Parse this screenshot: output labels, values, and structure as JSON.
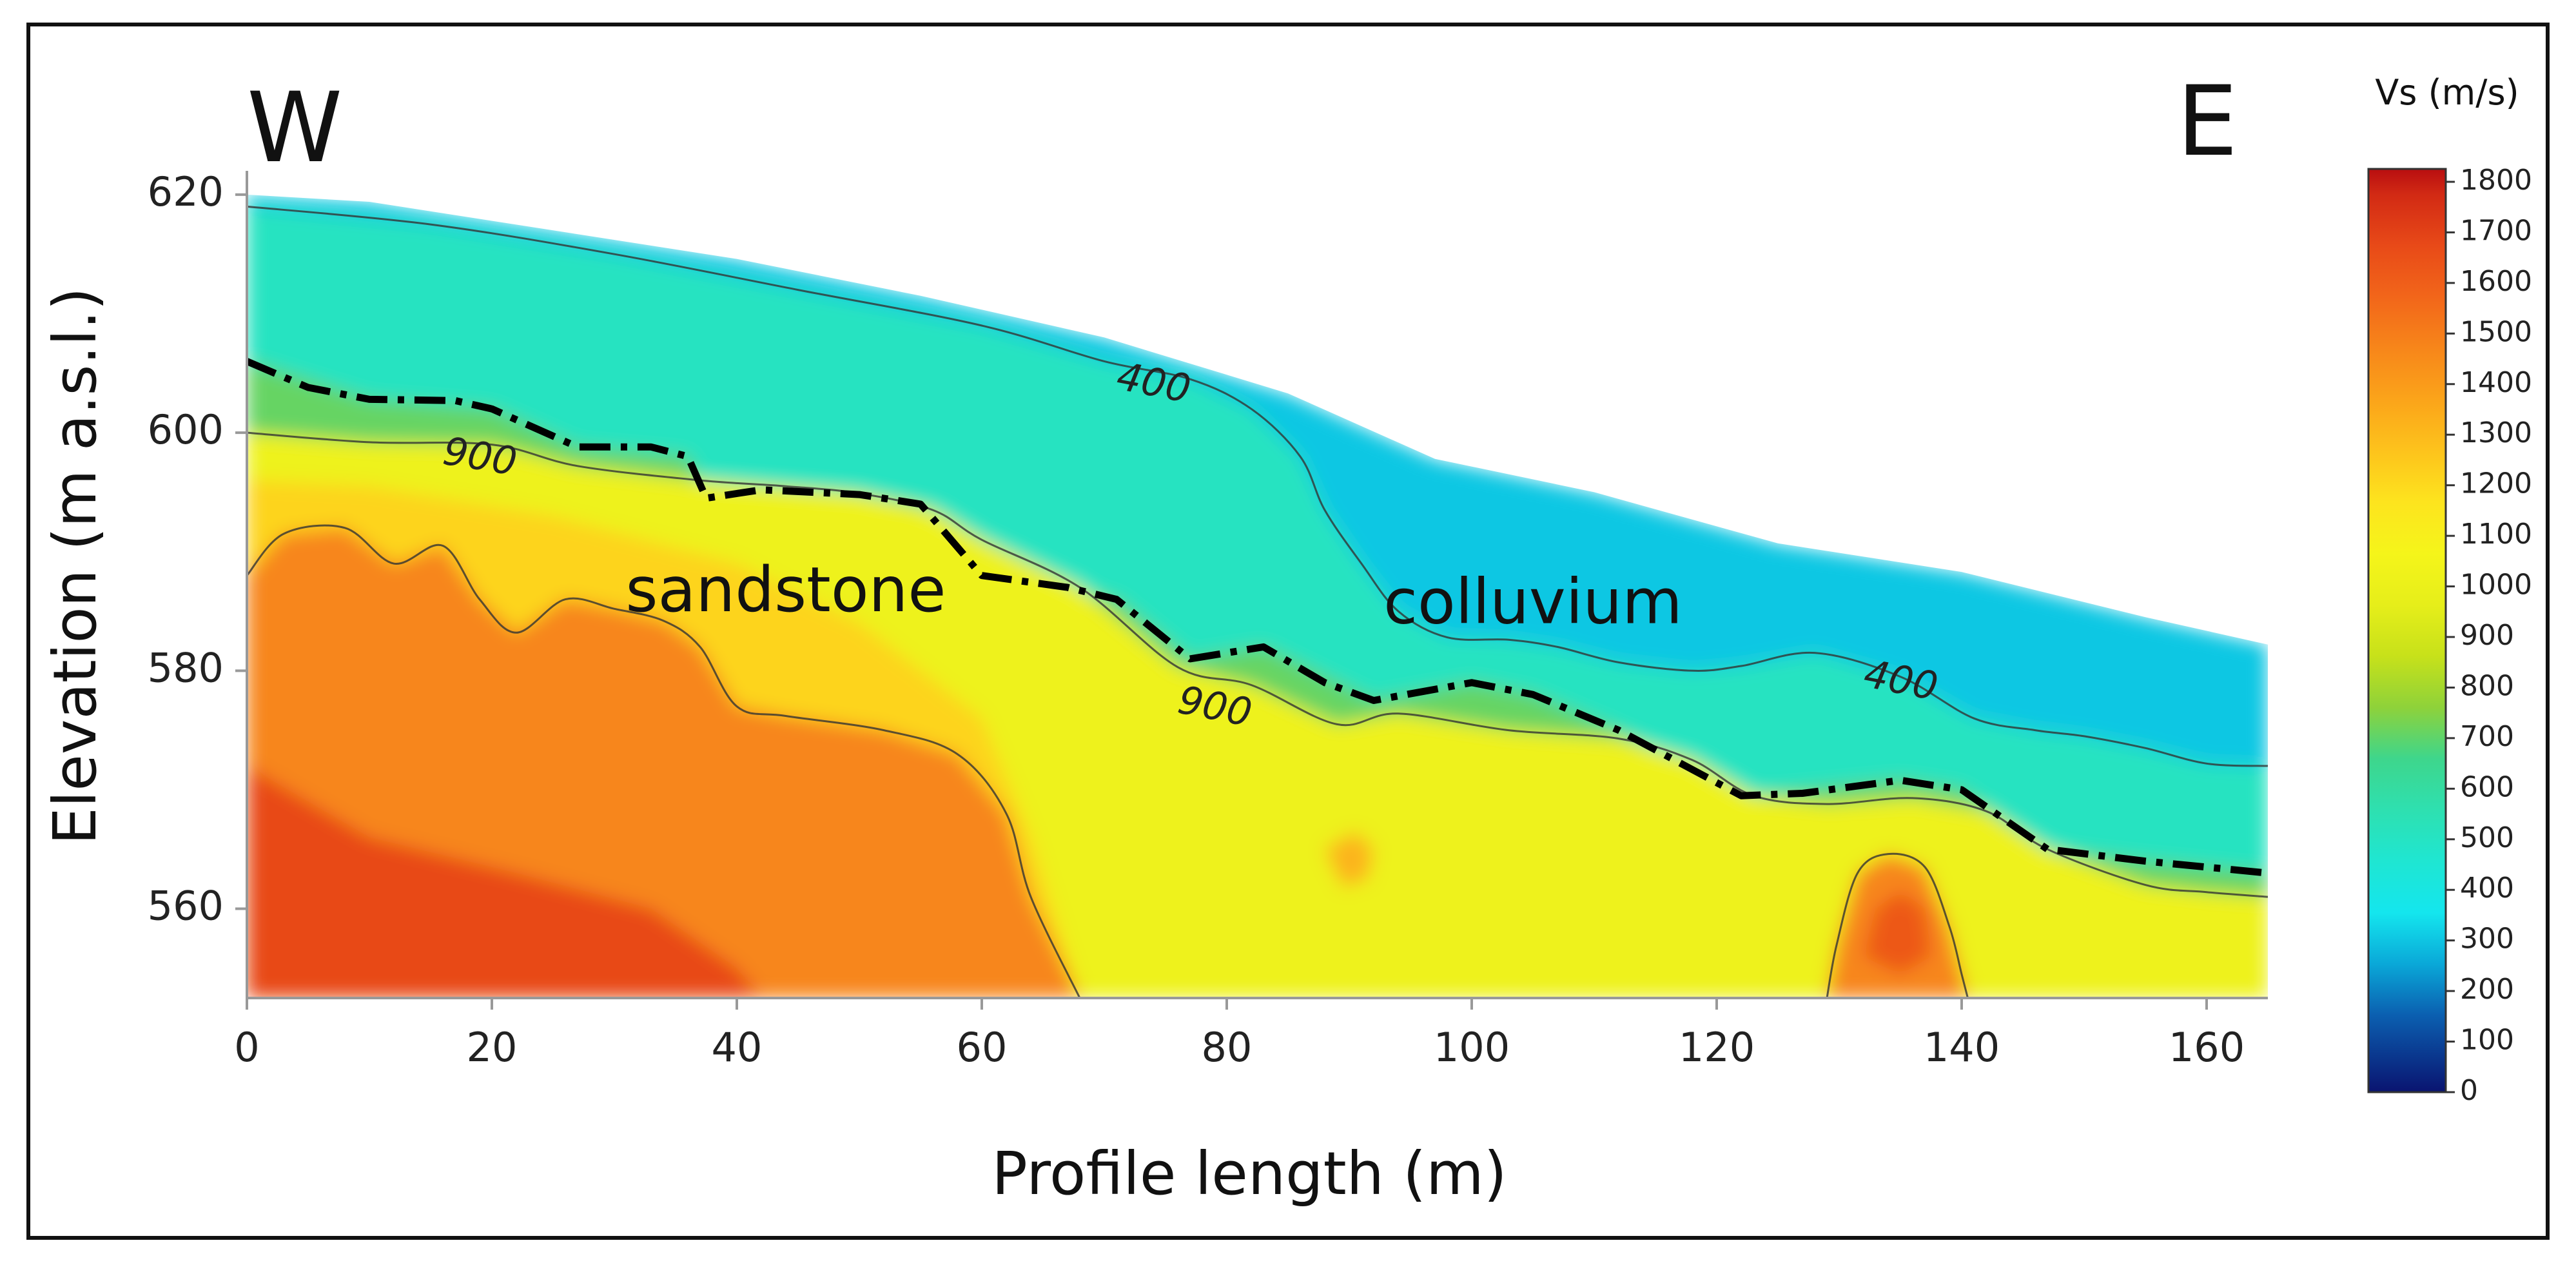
{
  "chart_data": {
    "type": "heatmap",
    "title": "",
    "xlabel": "Profile length (m)",
    "ylabel": "Elevation (m a.s.l.)",
    "xlim": [
      0,
      165
    ],
    "ylim": [
      552.5,
      622
    ],
    "x_ticks": [
      0,
      20,
      40,
      60,
      80,
      100,
      120,
      140,
      160
    ],
    "y_ticks": [
      560,
      580,
      600,
      620
    ],
    "orientation": {
      "left": "W",
      "right": "E"
    },
    "units": [
      {
        "name": "sandstone",
        "x": 44,
        "y": 585
      },
      {
        "name": "colluvium",
        "x": 105,
        "y": 584
      }
    ],
    "colorbar": {
      "title": "Vs (m/s)",
      "min": 0,
      "max": 1800,
      "ticks": [
        0,
        100,
        200,
        300,
        400,
        500,
        600,
        700,
        800,
        900,
        1000,
        1100,
        1200,
        1300,
        1400,
        1500,
        1600,
        1700,
        1800
      ],
      "colors": [
        [
          0,
          "#0a1470"
        ],
        [
          150,
          "#0b5fb0"
        ],
        [
          250,
          "#0aa8d8"
        ],
        [
          350,
          "#14e6ee"
        ],
        [
          450,
          "#1fe6d2"
        ],
        [
          550,
          "#2ee0b0"
        ],
        [
          650,
          "#3ed68c"
        ],
        [
          750,
          "#8ed23a"
        ],
        [
          850,
          "#c7e11a"
        ],
        [
          950,
          "#e6ee1a"
        ],
        [
          1050,
          "#f5f51a"
        ],
        [
          1150,
          "#fde41e"
        ],
        [
          1250,
          "#fdc31c"
        ],
        [
          1350,
          "#fba41a"
        ],
        [
          1450,
          "#f7861a"
        ],
        [
          1550,
          "#f2661a"
        ],
        [
          1650,
          "#e84a18"
        ],
        [
          1750,
          "#d22a14"
        ],
        [
          1800,
          "#b80e10"
        ]
      ]
    },
    "surface_profile": [
      [
        0,
        620
      ],
      [
        10,
        619.4
      ],
      [
        25,
        617
      ],
      [
        40,
        614.6
      ],
      [
        55,
        611.5
      ],
      [
        70,
        608
      ],
      [
        85,
        603.3
      ],
      [
        97,
        597.8
      ],
      [
        110,
        595
      ],
      [
        125,
        590.7
      ],
      [
        140,
        588.3
      ],
      [
        155,
        584.5
      ],
      [
        165,
        582.2
      ]
    ],
    "interface_line": [
      [
        0,
        606
      ],
      [
        5,
        603.8
      ],
      [
        10,
        602.8
      ],
      [
        17,
        602.7
      ],
      [
        20,
        602
      ],
      [
        27,
        598.8
      ],
      [
        33,
        598.8
      ],
      [
        36,
        598
      ],
      [
        37.5,
        594.5
      ],
      [
        42,
        595.2
      ],
      [
        50,
        594.8
      ],
      [
        55,
        594
      ],
      [
        60,
        588
      ],
      [
        67,
        587
      ],
      [
        71,
        586
      ],
      [
        77,
        581
      ],
      [
        83,
        582
      ],
      [
        88,
        579
      ],
      [
        92,
        577.5
      ],
      [
        100,
        579
      ],
      [
        105,
        578
      ],
      [
        112,
        575
      ],
      [
        122,
        569.5
      ],
      [
        127,
        569.7
      ],
      [
        135,
        570.8
      ],
      [
        140,
        570
      ],
      [
        147,
        565
      ],
      [
        155,
        564
      ],
      [
        165,
        563
      ]
    ],
    "contours": [
      {
        "value": 400,
        "points": [
          [
            0,
            619
          ],
          [
            15,
            617.5
          ],
          [
            30,
            615
          ],
          [
            45,
            612
          ],
          [
            60,
            609
          ],
          [
            70,
            606
          ],
          [
            77,
            604.5
          ],
          [
            82,
            602
          ],
          [
            86,
            598
          ],
          [
            88,
            593.5
          ],
          [
            91,
            589
          ],
          [
            94,
            585
          ],
          [
            98,
            582.8
          ],
          [
            103,
            582.6
          ],
          [
            107,
            582
          ],
          [
            112,
            580.7
          ],
          [
            118,
            580
          ],
          [
            122,
            580.4
          ],
          [
            128,
            581.5
          ],
          [
            135,
            579.5
          ],
          [
            141,
            576
          ],
          [
            146,
            575
          ],
          [
            150,
            574.5
          ],
          [
            155,
            573.5
          ],
          [
            160,
            572.2
          ],
          [
            165,
            572
          ]
        ]
      },
      {
        "value": 900,
        "points": [
          [
            0,
            600
          ],
          [
            10,
            599.2
          ],
          [
            20,
            599
          ],
          [
            27,
            597.2
          ],
          [
            37,
            596
          ],
          [
            44,
            595.5
          ],
          [
            50,
            594.9
          ],
          [
            56,
            593.5
          ],
          [
            60,
            591
          ],
          [
            68,
            587
          ],
          [
            76,
            580.3
          ],
          [
            82,
            578.8
          ],
          [
            89,
            575.5
          ],
          [
            94,
            576.4
          ],
          [
            103,
            575
          ],
          [
            112,
            574.3
          ],
          [
            118,
            572.5
          ],
          [
            123,
            569.5
          ],
          [
            129,
            568.8
          ],
          [
            136,
            569.3
          ],
          [
            142,
            568.2
          ],
          [
            147,
            565
          ],
          [
            155,
            562
          ],
          [
            160,
            561.4
          ],
          [
            165,
            561
          ]
        ]
      },
      {
        "value": 1300,
        "points": [
          [
            0,
            588
          ],
          [
            3,
            591.5
          ],
          [
            8,
            592
          ],
          [
            12,
            589
          ],
          [
            16,
            590.5
          ],
          [
            19,
            586
          ],
          [
            22,
            583.2
          ],
          [
            26,
            586
          ],
          [
            30,
            585.2
          ],
          [
            34,
            584.2
          ],
          [
            37,
            582
          ],
          [
            40,
            577
          ],
          [
            44,
            576.2
          ],
          [
            52,
            575
          ],
          [
            58,
            573
          ],
          [
            62,
            568
          ],
          [
            64,
            561
          ],
          [
            68,
            552.5
          ]
        ]
      },
      {
        "value": 1300,
        "points": [
          [
            129,
            552.5
          ],
          [
            129.8,
            557
          ],
          [
            131.5,
            563
          ],
          [
            134,
            564.6
          ],
          [
            137,
            563.5
          ],
          [
            139,
            558.5
          ],
          [
            140,
            554.5
          ],
          [
            140.5,
            552.5
          ]
        ]
      }
    ],
    "contour_labels": [
      {
        "value": 400,
        "x": 74,
        "y": 604,
        "angle": 11
      },
      {
        "value": 400,
        "x": 135,
        "y": 579,
        "angle": 11
      },
      {
        "value": 900,
        "x": 19,
        "y": 597.8,
        "angle": 9
      },
      {
        "value": 900,
        "x": 79,
        "y": 576.8,
        "angle": 11
      }
    ],
    "velocity_zones": [
      {
        "name": "surface",
        "vs": 300,
        "points": [
          [
            0,
            620
          ],
          [
            10,
            619.4
          ],
          [
            25,
            617
          ],
          [
            40,
            614.6
          ],
          [
            55,
            611.5
          ],
          [
            70,
            608
          ],
          [
            85,
            603.3
          ],
          [
            97,
            597.8
          ],
          [
            110,
            595
          ],
          [
            125,
            590.7
          ],
          [
            140,
            588.3
          ],
          [
            155,
            584.5
          ],
          [
            165,
            582.2
          ],
          [
            165,
            552.5
          ],
          [
            0,
            552.5
          ]
        ]
      },
      {
        "name": "cyan-green",
        "vs": 500,
        "points": [
          [
            0,
            619
          ],
          [
            15,
            617.5
          ],
          [
            30,
            615
          ],
          [
            45,
            612
          ],
          [
            60,
            609
          ],
          [
            70,
            606
          ],
          [
            77,
            604.5
          ],
          [
            82,
            602
          ],
          [
            86,
            598
          ],
          [
            88,
            593.5
          ],
          [
            91,
            589
          ],
          [
            94,
            585
          ],
          [
            98,
            582.8
          ],
          [
            103,
            582.6
          ],
          [
            107,
            582
          ],
          [
            112,
            580.7
          ],
          [
            118,
            580
          ],
          [
            122,
            580.4
          ],
          [
            128,
            581.5
          ],
          [
            135,
            579.5
          ],
          [
            141,
            576
          ],
          [
            146,
            575
          ],
          [
            150,
            574.5
          ],
          [
            155,
            573.5
          ],
          [
            160,
            572.2
          ],
          [
            165,
            572
          ],
          [
            165,
            552.5
          ],
          [
            0,
            552.5
          ]
        ]
      },
      {
        "name": "green",
        "vs": 700,
        "points": [
          [
            0,
            606
          ],
          [
            10,
            602.8
          ],
          [
            20,
            602
          ],
          [
            27,
            598.8
          ],
          [
            36,
            598
          ],
          [
            37.5,
            594.5
          ],
          [
            50,
            594.8
          ],
          [
            55,
            594
          ],
          [
            60,
            588
          ],
          [
            71,
            586
          ],
          [
            77,
            581
          ],
          [
            83,
            582
          ],
          [
            92,
            577.5
          ],
          [
            100,
            579
          ],
          [
            105,
            578
          ],
          [
            112,
            575
          ],
          [
            122,
            569.5
          ],
          [
            135,
            570.8
          ],
          [
            140,
            570
          ],
          [
            147,
            565
          ],
          [
            155,
            564
          ],
          [
            165,
            563
          ],
          [
            165,
            552.5
          ],
          [
            0,
            552.5
          ]
        ]
      },
      {
        "name": "yellow",
        "vs": 1000,
        "points": [
          [
            0,
            600
          ],
          [
            10,
            599.2
          ],
          [
            20,
            599
          ],
          [
            27,
            597.2
          ],
          [
            37,
            596
          ],
          [
            50,
            594.9
          ],
          [
            56,
            593.5
          ],
          [
            60,
            591
          ],
          [
            68,
            587
          ],
          [
            76,
            580.3
          ],
          [
            82,
            578.8
          ],
          [
            89,
            575.5
          ],
          [
            94,
            576.4
          ],
          [
            103,
            575
          ],
          [
            112,
            574.3
          ],
          [
            118,
            572.5
          ],
          [
            123,
            569.5
          ],
          [
            129,
            568.8
          ],
          [
            136,
            569.3
          ],
          [
            142,
            568.2
          ],
          [
            147,
            565
          ],
          [
            155,
            562
          ],
          [
            160,
            561.4
          ],
          [
            165,
            561
          ],
          [
            165,
            552.5
          ],
          [
            0,
            552.5
          ]
        ]
      },
      {
        "name": "orange",
        "vs": 1200,
        "points": [
          [
            0,
            596
          ],
          [
            10,
            595.5
          ],
          [
            25,
            593
          ],
          [
            40,
            589
          ],
          [
            50,
            584
          ],
          [
            55,
            580
          ],
          [
            60,
            576
          ],
          [
            64,
            566
          ],
          [
            68,
            552.5
          ],
          [
            0,
            552.5
          ]
        ]
      },
      {
        "name": "red-orange",
        "vs": 1450,
        "points": [
          [
            0,
            588
          ],
          [
            3,
            591.5
          ],
          [
            8,
            592
          ],
          [
            12,
            589
          ],
          [
            16,
            590.5
          ],
          [
            19,
            586
          ],
          [
            22,
            583.2
          ],
          [
            26,
            586
          ],
          [
            30,
            585.2
          ],
          [
            34,
            584.2
          ],
          [
            37,
            582
          ],
          [
            40,
            577
          ],
          [
            44,
            576.2
          ],
          [
            52,
            575
          ],
          [
            58,
            573
          ],
          [
            62,
            568
          ],
          [
            64,
            561
          ],
          [
            68,
            552.5
          ],
          [
            0,
            552.5
          ]
        ]
      },
      {
        "name": "deep-red",
        "vs": 1650,
        "points": [
          [
            0,
            572
          ],
          [
            10,
            566
          ],
          [
            22,
            563
          ],
          [
            33,
            560
          ],
          [
            40,
            555
          ],
          [
            42,
            552.5
          ],
          [
            0,
            552.5
          ]
        ]
      },
      {
        "name": "anomaly-east-outer",
        "vs": 1450,
        "points": [
          [
            129,
            552.5
          ],
          [
            129.8,
            557
          ],
          [
            131.5,
            563
          ],
          [
            134,
            564.6
          ],
          [
            137,
            563.5
          ],
          [
            139,
            558.5
          ],
          [
            140,
            554.5
          ],
          [
            140.5,
            552.5
          ]
        ]
      },
      {
        "name": "anomaly-east-core",
        "vs": 1600,
        "points": [
          [
            132,
            556
          ],
          [
            133,
            560
          ],
          [
            135,
            561.5
          ],
          [
            137,
            560
          ],
          [
            137.5,
            556
          ],
          [
            135,
            554.5
          ]
        ]
      },
      {
        "name": "anomaly-90-blob",
        "vs": 1300,
        "points": [
          [
            88,
            565
          ],
          [
            89.5,
            561.8
          ],
          [
            91.5,
            562.5
          ],
          [
            92,
            565
          ],
          [
            90.5,
            566.5
          ]
        ]
      }
    ]
  }
}
